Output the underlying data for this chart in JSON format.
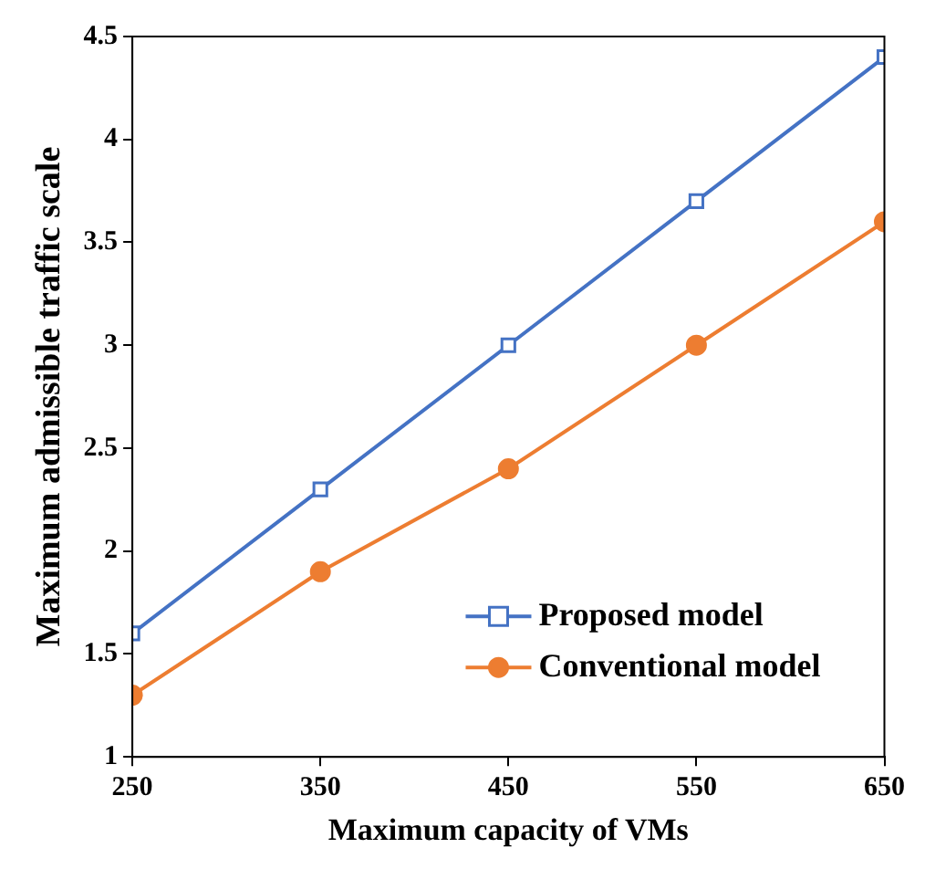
{
  "chart_data": {
    "type": "line",
    "xlabel": "Maximum capacity of VMs",
    "ylabel": "Maximum admissible traffic scale",
    "x": [
      250,
      350,
      450,
      550,
      650
    ],
    "series": [
      {
        "name": "Proposed model",
        "color": "#4472c4",
        "marker": "square",
        "values": [
          1.6,
          2.3,
          3.0,
          3.7,
          4.4
        ]
      },
      {
        "name": "Conventional model",
        "color": "#ed7d31",
        "marker": "circle",
        "values": [
          1.3,
          1.9,
          2.4,
          3.0,
          3.6
        ]
      }
    ],
    "xlim": [
      250,
      650
    ],
    "xticks": [
      250,
      350,
      450,
      550,
      650
    ],
    "ylim": [
      1,
      4.5
    ],
    "yticks": [
      1,
      1.5,
      2,
      2.5,
      3,
      3.5,
      4,
      4.5
    ],
    "grid": false,
    "legend": "bottom right"
  }
}
